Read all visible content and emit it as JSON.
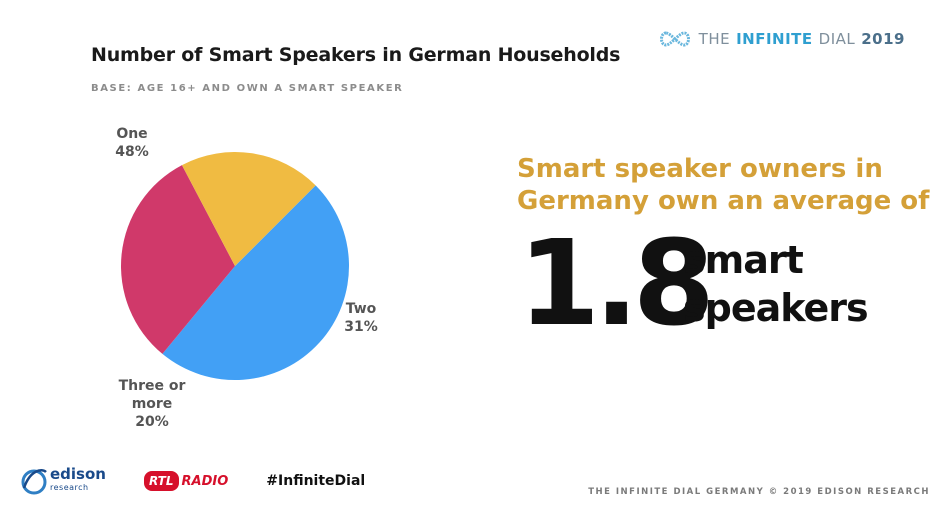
{
  "header": {
    "brand_prefix": "THE",
    "brand_infinite": "INFINITE",
    "brand_dial": "DIAL",
    "brand_year": "2019"
  },
  "chart_data": {
    "type": "pie",
    "title": "Number of Smart Speakers in German Households",
    "subtitle": "BASE: AGE 16+ AND OWN A SMART SPEAKER",
    "slices": [
      {
        "label": "One",
        "value": 48,
        "value_label": "48%",
        "color": "#42a0f5"
      },
      {
        "label": "Two",
        "value": 31,
        "value_label": "31%",
        "color": "#d0396a"
      },
      {
        "label": "Three or more",
        "value": 20,
        "value_label": "20%",
        "color": "#f0bb42"
      }
    ]
  },
  "callout": {
    "headline_line1": "Smart speaker owners in",
    "headline_line2": "Germany own an average of",
    "number": "1.8",
    "unit_line1": "smart",
    "unit_line2": "speakers"
  },
  "footer": {
    "edison_name": "edison",
    "edison_sub": "research",
    "rtl_box": "RTL",
    "rtl_radio": "RADIO",
    "hashtag": "#InfiniteDial",
    "copyright": "THE INFINITE DIAL GERMANY  © 2019 EDISON RESEARCH"
  }
}
